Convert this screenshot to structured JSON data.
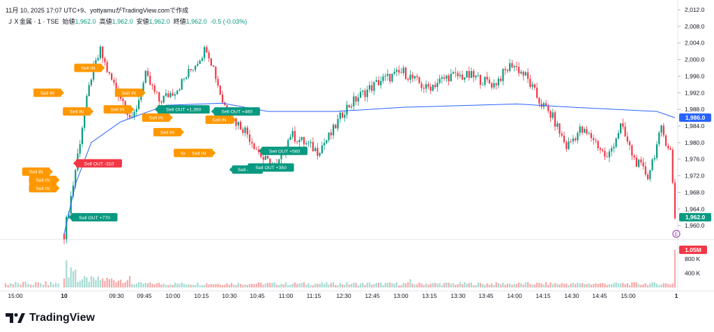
{
  "header": {
    "caption": "11月 10, 2025 17:07 UTC+9、yottyamuがTradingView.comで作成",
    "symbol": "ＪＸ金属 · 1 · TSE",
    "open_label": "始値",
    "open_value": "1,962.0",
    "high_label": "高値",
    "high_value": "1,962.0",
    "low_label": "安値",
    "low_value": "1,962.0",
    "close_label": "終値",
    "close_value": "1,962.0",
    "change": "-0.5 (-0.03%)"
  },
  "brand": {
    "name": "TradingView"
  },
  "colors": {
    "up": "#089981",
    "down": "#f23645",
    "vwap": "#2962ff",
    "sell_in": "#ff9800",
    "sell_out_loss": "#f23645",
    "sell_out_profit": "#089981",
    "vol_up": "#a6dbd3",
    "vol_down": "#f7a9a7"
  },
  "chart_data": {
    "type": "candlestick",
    "interval": "1 minute",
    "y_ticks": [
      "2,012.0",
      "2,008.0",
      "2,004.0",
      "2,000.0",
      "1,996.0",
      "1,992.0",
      "1,988.0",
      "1,984.0",
      "1,980.0",
      "1,976.0",
      "1,972.0",
      "1,968.0",
      "1,964.0",
      "1,960.0"
    ],
    "ylim": [
      1957,
      2012
    ],
    "x_ticks": [
      "15:00",
      "10",
      "09:30",
      "09:45",
      "10:00",
      "10:15",
      "10:30",
      "10:45",
      "11:00",
      "11:15",
      "12:30",
      "12:45",
      "13:00",
      "13:15",
      "13:30",
      "13:45",
      "14:00",
      "14:15",
      "14:30",
      "14:45",
      "15:00",
      "1"
    ],
    "volume_ticks": [
      "800 K",
      "400 K"
    ],
    "volume_max": 1300000,
    "last_price_label": "1,962.0",
    "vwap_label": "1,986.0",
    "last_volume_label": "1.05M",
    "price_path": [
      {
        "t": 0,
        "p": 1958
      },
      {
        "t": 4,
        "p": 1970
      },
      {
        "t": 8,
        "p": 1984
      },
      {
        "t": 12,
        "p": 1996
      },
      {
        "t": 16,
        "p": 2002
      },
      {
        "t": 20,
        "p": 1996
      },
      {
        "t": 26,
        "p": 1990
      },
      {
        "t": 30,
        "p": 1985
      },
      {
        "t": 36,
        "p": 1996
      },
      {
        "t": 42,
        "p": 1990
      },
      {
        "t": 50,
        "p": 1993
      },
      {
        "t": 58,
        "p": 1999
      },
      {
        "t": 63,
        "p": 2003
      },
      {
        "t": 66,
        "p": 1998
      },
      {
        "t": 70,
        "p": 1990
      },
      {
        "t": 74,
        "p": 1986
      },
      {
        "t": 80,
        "p": 1983
      },
      {
        "t": 88,
        "p": 1976
      },
      {
        "t": 94,
        "p": 1974
      },
      {
        "t": 100,
        "p": 1982
      },
      {
        "t": 106,
        "p": 1980
      },
      {
        "t": 112,
        "p": 1978
      },
      {
        "t": 118,
        "p": 1982
      },
      {
        "t": 124,
        "p": 1988
      },
      {
        "t": 130,
        "p": 1991
      },
      {
        "t": 140,
        "p": 1995
      },
      {
        "t": 150,
        "p": 1997
      },
      {
        "t": 160,
        "p": 1993
      },
      {
        "t": 170,
        "p": 1996
      },
      {
        "t": 180,
        "p": 1996
      },
      {
        "t": 190,
        "p": 1994
      },
      {
        "t": 198,
        "p": 1999
      },
      {
        "t": 204,
        "p": 1996
      },
      {
        "t": 210,
        "p": 1990
      },
      {
        "t": 216,
        "p": 1986
      },
      {
        "t": 222,
        "p": 1979
      },
      {
        "t": 228,
        "p": 1983
      },
      {
        "t": 234,
        "p": 1981
      },
      {
        "t": 240,
        "p": 1976
      },
      {
        "t": 246,
        "p": 1984
      },
      {
        "t": 252,
        "p": 1976
      },
      {
        "t": 258,
        "p": 1972
      },
      {
        "t": 264,
        "p": 1983
      },
      {
        "t": 268,
        "p": 1978
      },
      {
        "t": 270,
        "p": 1962
      }
    ],
    "vwap": [
      {
        "t": 0,
        "p": 1958
      },
      {
        "t": 5,
        "p": 1970
      },
      {
        "t": 12,
        "p": 1980
      },
      {
        "t": 25,
        "p": 1985
      },
      {
        "t": 45,
        "p": 1989
      },
      {
        "t": 70,
        "p": 1989.5
      },
      {
        "t": 90,
        "p": 1987.5
      },
      {
        "t": 120,
        "p": 1987.5
      },
      {
        "t": 150,
        "p": 1988.5
      },
      {
        "t": 200,
        "p": 1989.3
      },
      {
        "t": 225,
        "p": 1988.5
      },
      {
        "t": 262,
        "p": 1987.5
      },
      {
        "t": 270,
        "p": 1986
      }
    ],
    "trade_markers": [
      {
        "label": "Sell IN",
        "kind": "in",
        "t": 0,
        "p": 1992,
        "dir": "right"
      },
      {
        "label": "Sell IN",
        "kind": "in",
        "t": 18,
        "p": 1998,
        "dir": "right"
      },
      {
        "label": "Sell IN",
        "kind": "in",
        "t": 13,
        "p": 1987.5,
        "dir": "right"
      },
      {
        "label": "Sell IN",
        "kind": "in",
        "t": 36,
        "p": 1992,
        "dir": "right"
      },
      {
        "label": "Sell IN",
        "kind": "in",
        "t": 31,
        "p": 1988,
        "dir": "right"
      },
      {
        "label": "Sell OUT +1,350",
        "kind": "out",
        "t": 40,
        "p": 1988,
        "dir": "left"
      },
      {
        "label": "Sell IN",
        "kind": "in",
        "t": 48,
        "p": 1986,
        "dir": "right"
      },
      {
        "label": "Sell OUT +460",
        "kind": "out",
        "t": 65,
        "p": 1987.5,
        "dir": "left"
      },
      {
        "label": "Sell IN",
        "kind": "in",
        "t": 53,
        "p": 1982.5,
        "dir": "right"
      },
      {
        "label": "Sell IN",
        "kind": "in",
        "t": 76,
        "p": 1985.5,
        "dir": "right"
      },
      {
        "label": "Sell IN",
        "kind": "in",
        "t": 62,
        "p": 1977.5,
        "dir": "right"
      },
      {
        "label": "Sell IN",
        "kind": "in",
        "t": 67,
        "p": 1977.5,
        "dir": "right"
      },
      {
        "label": "Sell OUT",
        "kind": "out",
        "t": 73,
        "p": 1973.5,
        "dir": "left"
      },
      {
        "label": "Sell OUT +350",
        "kind": "out",
        "t": 80,
        "p": 1974,
        "dir": "left"
      },
      {
        "label": "Sell OUT +560",
        "kind": "out",
        "t": 86,
        "p": 1978,
        "dir": "left"
      },
      {
        "label": "Sell IN",
        "kind": "in",
        "t": -5,
        "p": 1973,
        "dir": "right"
      },
      {
        "label": "Sell IN",
        "kind": "in",
        "t": -2,
        "p": 1971,
        "dir": "right"
      },
      {
        "label": "Sell IN",
        "kind": "in",
        "t": -2,
        "p": 1969,
        "dir": "right"
      },
      {
        "label": "Sell OUT -310",
        "kind": "outloss",
        "t": 4,
        "p": 1975,
        "dir": "left"
      },
      {
        "label": "Sell OUT +770",
        "kind": "out",
        "t": 2,
        "p": 1962,
        "dir": "left"
      }
    ],
    "end_marker": "E"
  }
}
